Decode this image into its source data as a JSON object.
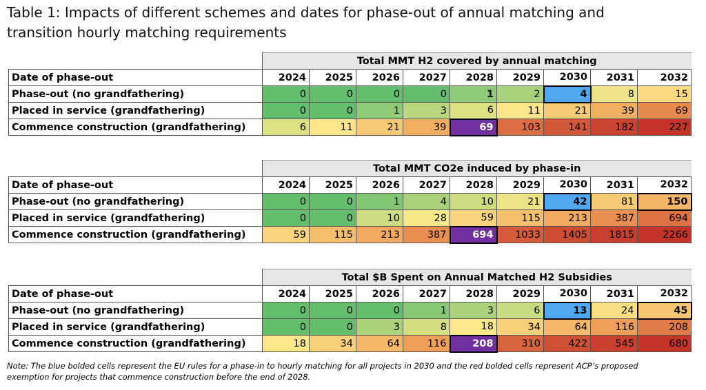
{
  "title": "Table 1: Impacts of different schemes and dates for phase-out of annual matching and transition hourly matching requirements",
  "tables": [
    {
      "heading": "Total MMT H2 covered by annual matching",
      "header": [
        "Date of phase-out",
        "2024",
        "2025",
        "2026",
        "2027",
        "2028",
        "2029",
        "2030",
        "2031",
        "2032"
      ],
      "rows": [
        [
          "Phase-out (no grandfathering)",
          0,
          0,
          0,
          0,
          1,
          2,
          4,
          8,
          15
        ],
        [
          "Placed in service (grandfathering)",
          0,
          0,
          1,
          3,
          6,
          11,
          21,
          39,
          69
        ],
        [
          "Commence construction (grandfathering)",
          6,
          11,
          21,
          39,
          69,
          103,
          141,
          182,
          227
        ]
      ]
    },
    {
      "heading": "Total MMT CO2e induced by phase-in",
      "header": [
        "Date of phase-out",
        "2024",
        "2025",
        "2026",
        "2027",
        "2028",
        "2029",
        "2030",
        "2031",
        "2032"
      ],
      "rows": [
        [
          "Phase-out (no grandfathering)",
          0,
          0,
          1,
          4,
          10,
          21,
          42,
          81,
          150
        ],
        [
          "Placed in service (grandfathering)",
          0,
          0,
          10,
          28,
          59,
          115,
          213,
          387,
          694
        ],
        [
          "Commence construction (grandfathering)",
          59,
          115,
          213,
          387,
          694,
          1033,
          1405,
          1815,
          2266
        ]
      ]
    },
    {
      "heading": "Total $B Spent on Annual Matched H2 Subsidies",
      "header": [
        "Date of phase-out",
        "2024",
        "2025",
        "2026",
        "2027",
        "2028",
        "2029",
        "2030",
        "2031",
        "2032"
      ],
      "rows": [
        [
          "Phase-out (no grandfathering)",
          0,
          0,
          0,
          1,
          3,
          6,
          13,
          24,
          45
        ],
        [
          "Placed in service (grandfathering)",
          0,
          0,
          3,
          8,
          18,
          34,
          64,
          116,
          208
        ],
        [
          "Commence construction (grandfathering)",
          18,
          34,
          64,
          116,
          208,
          310,
          422,
          545,
          680
        ]
      ]
    }
  ],
  "note": "Note: The blue bolded cells represent the EU rules for a phase-in to hourly matching for all projects in 2030 and the red bolded cells represent ACP’s proposed exemption for projects that commence construction before the end of 2028."
}
